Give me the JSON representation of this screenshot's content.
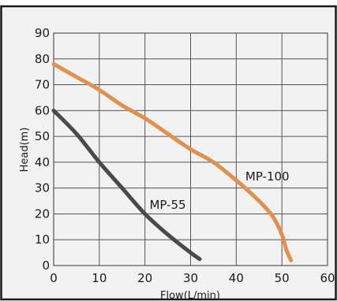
{
  "chart_data": {
    "type": "line",
    "title": "",
    "xlabel": "Flow(L/min)",
    "ylabel": "Head(m)",
    "xlim": [
      0,
      60
    ],
    "ylim": [
      0,
      90
    ],
    "x_ticks": [
      0,
      10,
      20,
      30,
      40,
      50,
      60
    ],
    "y_ticks": [
      0,
      10,
      20,
      30,
      40,
      50,
      60,
      70,
      80,
      90
    ],
    "grid": true,
    "legend": "none",
    "series": [
      {
        "name": "MP-100",
        "color": "#e0914f",
        "x": [
          0,
          5,
          10,
          15,
          20,
          25,
          30,
          35,
          40,
          45,
          48,
          50,
          51,
          52
        ],
        "y": [
          78,
          73,
          68,
          62,
          57,
          51,
          45,
          40,
          33,
          25,
          19,
          12,
          6,
          2
        ]
      },
      {
        "name": "MP-55",
        "color": "#4a4a4a",
        "x": [
          0,
          5,
          10,
          15,
          20,
          25,
          30,
          32
        ],
        "y": [
          60,
          51,
          40,
          30,
          20,
          12,
          5,
          2.5
        ]
      }
    ],
    "annotations": [
      {
        "series": "MP-100",
        "text": "MP-100",
        "x": 42,
        "y": 33
      },
      {
        "series": "MP-55",
        "text": "MP-55",
        "x": 21,
        "y": 22
      }
    ]
  }
}
